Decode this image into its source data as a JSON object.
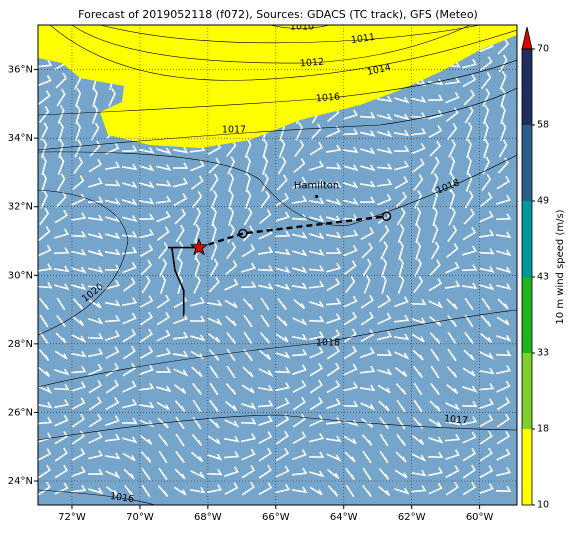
{
  "title": "Forecast of 2019052118 (f072), Sources: GDACS (TC track), GFS (Meteo)",
  "map": {
    "xlim": [
      -73,
      -58.9
    ],
    "ylim": [
      23.3,
      37.3
    ],
    "xticks": [
      {
        "value": -72,
        "label": "72°W"
      },
      {
        "value": -70,
        "label": "70°W"
      },
      {
        "value": -68,
        "label": "68°W"
      },
      {
        "value": -66,
        "label": "66°W"
      },
      {
        "value": -64,
        "label": "64°W"
      },
      {
        "value": -62,
        "label": "62°W"
      },
      {
        "value": -60,
        "label": "60°W"
      }
    ],
    "yticks": [
      {
        "value": 24,
        "label": "24°N"
      },
      {
        "value": 26,
        "label": "26°N"
      },
      {
        "value": 28,
        "label": "28°N"
      },
      {
        "value": 30,
        "label": "30°N"
      },
      {
        "value": 32,
        "label": "32°N"
      },
      {
        "value": 34,
        "label": "34°N"
      },
      {
        "value": 36,
        "label": "36°N"
      }
    ],
    "grid": true,
    "isobar_labels": [
      "1010",
      "1011",
      "1012",
      "1014",
      "1016",
      "1017",
      "1018",
      "1020",
      "1018",
      "1017",
      "1016"
    ],
    "place": {
      "name": "Hamilton",
      "lon": -64.8,
      "lat": 32.3
    },
    "track": {
      "past": [
        [
          -68.26,
          30.81
        ],
        [
          -69.18,
          30.81
        ],
        [
          -69.06,
          30.81
        ],
        [
          -68.97,
          30.15
        ],
        [
          -68.71,
          29.56
        ],
        [
          -68.71,
          28.81
        ]
      ],
      "forecast": [
        [
          -68.26,
          30.81
        ],
        [
          -66.97,
          31.22
        ],
        [
          -62.74,
          31.72
        ]
      ],
      "current": [
        -68.26,
        30.81
      ]
    }
  },
  "colorbar": {
    "label": "10 m wind speed (m/s)",
    "ticks": [
      10,
      18,
      33,
      43,
      49,
      58,
      70
    ],
    "colors": [
      "#ffff00",
      "#7fd02c",
      "#1db41d",
      "#009999",
      "#2c5e8c",
      "#1f2d5f"
    ],
    "extend_color": "#e00000"
  }
}
